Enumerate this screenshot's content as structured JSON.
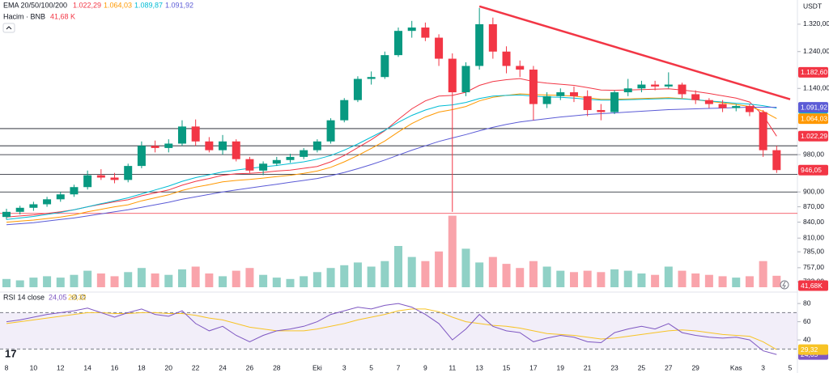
{
  "chart_data": {
    "type": "candlestick",
    "currency": "USDT",
    "indicator_title": "EMA 20/50/100/200",
    "volume_title": "Hacim · BNB",
    "volume_label": "41,68 K",
    "volume_badge": "41,68K",
    "categories": [
      "8",
      null,
      "10",
      null,
      "12",
      null,
      "14",
      null,
      "16",
      null,
      "18",
      null,
      "20",
      null,
      "22",
      null,
      "24",
      null,
      "26",
      null,
      "28",
      null,
      null,
      "Eki",
      null,
      "3",
      null,
      "5",
      null,
      "7",
      null,
      "9",
      null,
      "11",
      null,
      "13",
      null,
      "15",
      null,
      "17",
      null,
      "19",
      null,
      "21",
      null,
      "23",
      null,
      "25",
      null,
      "27",
      null,
      "29",
      null,
      null,
      "Kas",
      null,
      "3",
      null,
      "5"
    ],
    "open": [
      850,
      860,
      868,
      875,
      885,
      895,
      910,
      935,
      930,
      925,
      955,
      1000,
      995,
      1005,
      1045,
      1010,
      990,
      1010,
      970,
      945,
      960,
      968,
      975,
      990,
      1010,
      1060,
      1110,
      1165,
      1170,
      1230,
      1300,
      1310,
      1280,
      1220,
      1130,
      1200,
      1320,
      1240,
      1200,
      1190,
      1100,
      1120,
      1130,
      1120,
      1085,
      1080,
      1130,
      1140,
      1150,
      1145,
      1150,
      1125,
      1110,
      1100,
      1090,
      1095,
      1080,
      990,
      null
    ],
    "high": [
      866,
      872,
      880,
      890,
      900,
      915,
      945,
      948,
      940,
      960,
      1010,
      1012,
      1015,
      1060,
      1062,
      1020,
      1025,
      1015,
      975,
      965,
      975,
      982,
      995,
      1015,
      1065,
      1115,
      1172,
      1185,
      1240,
      1310,
      1330,
      1325,
      1290,
      1235,
      1210,
      1370,
      1340,
      1255,
      1215,
      1200,
      1130,
      1140,
      1145,
      1135,
      1100,
      1135,
      1165,
      1160,
      1160,
      1182.6,
      1155,
      1135,
      1115,
      1110,
      1100,
      1100,
      1085,
      1000,
      null
    ],
    "low": [
      845,
      855,
      862,
      870,
      880,
      890,
      905,
      925,
      918,
      920,
      950,
      985,
      985,
      1000,
      1000,
      985,
      980,
      965,
      940,
      935,
      955,
      962,
      970,
      985,
      1005,
      1055,
      1105,
      1150,
      1165,
      1225,
      1280,
      1270,
      1200,
      860,
      1120,
      1190,
      1220,
      1180,
      1170,
      1060,
      1090,
      1110,
      1105,
      1070,
      1060,
      1075,
      1120,
      1130,
      1135,
      1140,
      1115,
      1100,
      1090,
      1080,
      1082,
      1070,
      975,
      940,
      null
    ],
    "close": [
      860,
      868,
      875,
      885,
      895,
      910,
      935,
      930,
      925,
      955,
      1000,
      995,
      1005,
      1045,
      1010,
      990,
      1010,
      970,
      945,
      960,
      968,
      975,
      990,
      1010,
      1060,
      1110,
      1165,
      1170,
      1230,
      1300,
      1310,
      1280,
      1220,
      1130,
      1200,
      1320,
      1240,
      1200,
      1190,
      1100,
      1120,
      1130,
      1120,
      1085,
      1080,
      1130,
      1140,
      1150,
      1145,
      1150,
      1125,
      1110,
      1100,
      1090,
      1095,
      1080,
      990,
      946.05,
      null
    ],
    "close_label": "946,05",
    "up_color": "#089981",
    "down_color": "#f23645",
    "volume": [
      30,
      25,
      35,
      40,
      35,
      45,
      60,
      50,
      40,
      55,
      70,
      50,
      45,
      65,
      75,
      50,
      40,
      60,
      70,
      45,
      35,
      30,
      40,
      55,
      70,
      80,
      90,
      75,
      95,
      150,
      110,
      95,
      130,
      260,
      140,
      90,
      110,
      85,
      70,
      95,
      75,
      60,
      55,
      60,
      55,
      65,
      60,
      50,
      45,
      75,
      60,
      50,
      45,
      40,
      35,
      40,
      95,
      41.68,
      null
    ],
    "ylim": [
      724,
      1395
    ],
    "log_scale": true,
    "yticks": [
      {
        "value": 1320,
        "label": "1.320,00"
      },
      {
        "value": 1240,
        "label": "1.240,00"
      },
      {
        "value": 1140,
        "label": "1.140,00"
      },
      {
        "value": 980,
        "label": "980,00"
      },
      {
        "value": 900,
        "label": "900,00"
      },
      {
        "value": 870,
        "label": "870,00"
      },
      {
        "value": 840,
        "label": "840,00"
      },
      {
        "value": 810,
        "label": "810,00"
      },
      {
        "value": 785,
        "label": "785,00"
      },
      {
        "value": 757,
        "label": "757,00"
      },
      {
        "value": 733,
        "label": "733,00"
      }
    ],
    "high_marker": {
      "value": 1182.6,
      "label": "1.182,60",
      "color": "#f23645"
    },
    "ema": [
      {
        "color": "#f23645",
        "label": "1.022,29",
        "values": [
          850,
          852,
          854,
          857,
          860,
          864,
          870,
          875,
          880,
          884,
          892,
          898,
          904,
          914,
          922,
          928,
          935,
          938,
          939,
          941,
          944,
          946,
          950,
          954,
          964,
          978,
          996,
          1014,
          1035,
          1062,
          1088,
          1108,
          1120,
          1122,
          1130,
          1148,
          1158,
          1163,
          1166,
          1158,
          1154,
          1151,
          1148,
          1142,
          1136,
          1135,
          1136,
          1137,
          1138,
          1139,
          1136,
          1132,
          1127,
          1121,
          1115,
          1105,
          1072,
          1022.29,
          null
        ]
      },
      {
        "color": "#ff9800",
        "label": "1.064,03",
        "values": [
          840,
          842,
          844,
          847,
          850,
          854,
          860,
          865,
          870,
          874,
          882,
          888,
          894,
          903,
          910,
          915,
          921,
          924,
          926,
          929,
          932,
          935,
          939,
          944,
          952,
          964,
          978,
          994,
          1011,
          1032,
          1052,
          1068,
          1080,
          1086,
          1094,
          1108,
          1117,
          1122,
          1126,
          1124,
          1123,
          1122,
          1120,
          1116,
          1112,
          1112,
          1113,
          1114,
          1115,
          1116,
          1114,
          1111,
          1107,
          1103,
          1099,
          1094,
          1082,
          1064.03,
          null
        ]
      },
      {
        "color": "#00bcd4",
        "label": "1.089,87",
        "values": [
          845,
          848,
          851,
          855,
          859,
          864,
          870,
          876,
          882,
          888,
          896,
          904,
          912,
          922,
          930,
          936,
          942,
          946,
          950,
          953,
          956,
          960,
          964,
          970,
          978,
          990,
          1004,
          1020,
          1036,
          1055,
          1072,
          1085,
          1095,
          1098,
          1104,
          1114,
          1120,
          1122,
          1123,
          1120,
          1118,
          1117,
          1115,
          1112,
          1110,
          1110,
          1111,
          1112,
          1113,
          1114,
          1113,
          1111,
          1108,
          1105,
          1102,
          1100,
          1096,
          1089.87,
          null
        ]
      },
      {
        "color": "#5b5bd6",
        "label": "1.091,92",
        "values": [
          835,
          837,
          839,
          842,
          845,
          848,
          852,
          856,
          860,
          864,
          869,
          874,
          879,
          885,
          890,
          895,
          900,
          904,
          908,
          912,
          916,
          920,
          924,
          928,
          934,
          941,
          949,
          958,
          968,
          979,
          990,
          1000,
          1010,
          1018,
          1026,
          1035,
          1043,
          1050,
          1056,
          1060,
          1064,
          1068,
          1071,
          1074,
          1076,
          1078,
          1080,
          1082,
          1084,
          1086,
          1087,
          1088,
          1089,
          1090,
          1091,
          1092,
          1092,
          1091.92,
          null
        ]
      }
    ],
    "levels": [
      1040,
      1000,
      980,
      937,
      900
    ],
    "red_level": 857,
    "trendline": {
      "x": [
        35,
        58
      ],
      "y": [
        1375,
        1112
      ],
      "color": "#f23645"
    },
    "rsi": {
      "title": "RSI 14 close",
      "extra": "∅ ∅",
      "ylim": [
        9,
        89
      ],
      "yticks": [
        80,
        60,
        40
      ],
      "bands": [
        70,
        30
      ],
      "series": [
        {
          "color": "#7e57c2",
          "label": "24,05",
          "values": [
            60,
            62,
            65,
            68,
            70,
            72,
            75,
            70,
            65,
            70,
            74,
            68,
            66,
            72,
            58,
            50,
            55,
            45,
            38,
            45,
            50,
            52,
            55,
            60,
            68,
            72,
            76,
            74,
            78,
            80,
            76,
            68,
            58,
            40,
            52,
            68,
            55,
            50,
            48,
            38,
            42,
            45,
            43,
            38,
            37,
            48,
            52,
            55,
            52,
            58,
            48,
            45,
            43,
            42,
            43,
            40,
            28,
            24.05,
            null
          ]
        },
        {
          "color": "#f7c325",
          "label": "29,32",
          "values": [
            58,
            60,
            62,
            64,
            66,
            68,
            70,
            70,
            69,
            69,
            70,
            70,
            69,
            69,
            67,
            64,
            62,
            58,
            54,
            52,
            50,
            50,
            50,
            52,
            55,
            58,
            62,
            65,
            68,
            72,
            74,
            74,
            71,
            65,
            60,
            58,
            56,
            55,
            53,
            50,
            47,
            46,
            45,
            43,
            41,
            42,
            44,
            46,
            48,
            50,
            51,
            50,
            48,
            46,
            45,
            44,
            38,
            29.32,
            null
          ]
        }
      ]
    }
  }
}
